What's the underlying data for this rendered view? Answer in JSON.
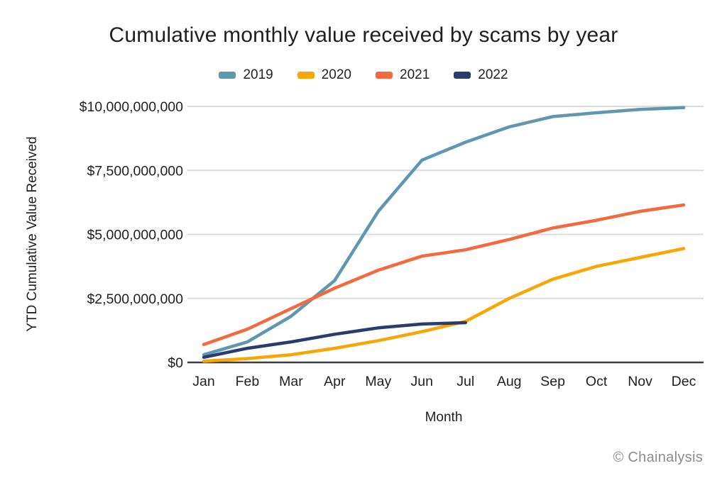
{
  "title": "Cumulative monthly value received by scams by year",
  "watermark": "© Chainalysis",
  "legend": {
    "items": [
      {
        "label": "2019",
        "color": "#6097B0"
      },
      {
        "label": "2020",
        "color": "#F8A605"
      },
      {
        "label": "2021",
        "color": "#F26A3D"
      },
      {
        "label": "2022",
        "color": "#2C3B6F"
      }
    ]
  },
  "colors": {
    "grid": "#DBDBDB",
    "axis": "#3D3D3D",
    "text": "#1F1F1F",
    "watermark": "#8C8C8C"
  },
  "chart_data": {
    "type": "line",
    "title": "Cumulative monthly value received by scams by year",
    "xlabel": "Month",
    "ylabel": "YTD Cumulative Value Received",
    "x_categories": [
      "Jan",
      "Feb",
      "Mar",
      "Apr",
      "May",
      "Jun",
      "Jul",
      "Aug",
      "Sep",
      "Oct",
      "Nov",
      "Dec"
    ],
    "ylim": [
      0,
      10000000000
    ],
    "grid": "horizontal-only",
    "legend_position": "top-center",
    "yticks": [
      {
        "value": 0,
        "label": "$0"
      },
      {
        "value": 2500000000,
        "label": "$2,500,000,000"
      },
      {
        "value": 5000000000,
        "label": "$5,000,000,000"
      },
      {
        "value": 7500000000,
        "label": "$7,500,000,000"
      },
      {
        "value": 10000000000,
        "label": "$10,000,000,000"
      }
    ],
    "series": [
      {
        "name": "2019",
        "color": "#6097B0",
        "values": [
          300000000,
          800000000,
          1800000000,
          3200000000,
          5900000000,
          7900000000,
          8600000000,
          9200000000,
          9600000000,
          9750000000,
          9880000000,
          9950000000
        ]
      },
      {
        "name": "2020",
        "color": "#F8A605",
        "values": [
          50000000,
          150000000,
          300000000,
          550000000,
          850000000,
          1200000000,
          1600000000,
          2500000000,
          3250000000,
          3750000000,
          4100000000,
          4450000000
        ]
      },
      {
        "name": "2021",
        "color": "#F26A3D",
        "values": [
          700000000,
          1300000000,
          2100000000,
          2900000000,
          3600000000,
          4150000000,
          4400000000,
          4800000000,
          5250000000,
          5550000000,
          5900000000,
          6150000000
        ]
      },
      {
        "name": "2022",
        "color": "#2C3B6F",
        "values": [
          200000000,
          550000000,
          800000000,
          1100000000,
          1350000000,
          1500000000,
          1550000000
        ]
      }
    ]
  }
}
